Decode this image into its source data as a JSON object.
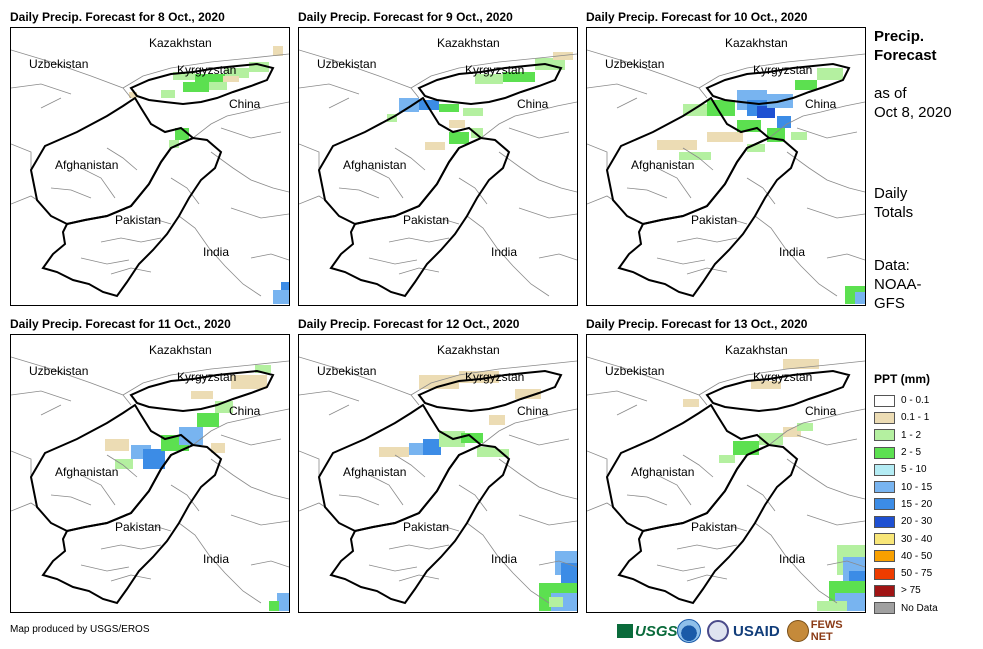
{
  "panels": [
    {
      "title": "Daily Precip. Forecast for 8 Oct., 2020",
      "day": 0
    },
    {
      "title": "Daily Precip. Forecast for 9 Oct., 2020",
      "day": 1
    },
    {
      "title": "Daily Precip. Forecast for 10 Oct., 2020",
      "day": 2
    },
    {
      "title": "Daily Precip. Forecast for 11 Oct., 2020",
      "day": 3
    },
    {
      "title": "Daily Precip. Forecast for 12 Oct., 2020",
      "day": 4
    },
    {
      "title": "Daily Precip. Forecast for 13 Oct., 2020",
      "day": 5
    }
  ],
  "labels": {
    "kazakhstan": "Kazakhstan",
    "uzbekistan": "Uzbekistan",
    "kyrgyzstan": "Kyrgyzstan",
    "china": "China",
    "afghanistan": "Afghanistan",
    "pakistan": "Pakistan",
    "india": "India"
  },
  "side": {
    "title_line1": "Precip.",
    "title_line2": "Forecast",
    "asof_line1": "as of",
    "asof_line2": "Oct 8, 2020",
    "daily_line1": "Daily",
    "daily_line2": "Totals",
    "data_line1": "Data:",
    "data_line2": "NOAA-",
    "data_line3": "GFS"
  },
  "legend": {
    "title": "PPT (mm)",
    "items": [
      {
        "label": "0 - 0.1",
        "color": "#ffffff"
      },
      {
        "label": "0.1 - 1",
        "color": "#ecdcb4"
      },
      {
        "label": "1 - 2",
        "color": "#b4f0a0"
      },
      {
        "label": "2 - 5",
        "color": "#5ce050"
      },
      {
        "label": "5 - 10",
        "color": "#b4ecf4"
      },
      {
        "label": "10 - 15",
        "color": "#78b4f0"
      },
      {
        "label": "15 - 20",
        "color": "#3c8ce6"
      },
      {
        "label": "20 - 30",
        "color": "#1e50d2"
      },
      {
        "label": "30 - 40",
        "color": "#f8e678"
      },
      {
        "label": "40 - 50",
        "color": "#f8a000"
      },
      {
        "label": "50 - 75",
        "color": "#ee3c00"
      },
      {
        "label": "> 75",
        "color": "#a01414"
      },
      {
        "label": "No Data",
        "color": "#a0a0a0"
      }
    ]
  },
  "footer": {
    "credit": "Map produced by USGS/EROS",
    "logos": {
      "usgs": "USGS",
      "usaid": "USAID",
      "fews": "FEWS NET"
    },
    "logo_icons": [
      "usgs-logo-icon",
      "noaa-logo-icon",
      "us-seal-icon",
      "usaid-logo-icon",
      "fews-net-logo-icon"
    ]
  }
}
